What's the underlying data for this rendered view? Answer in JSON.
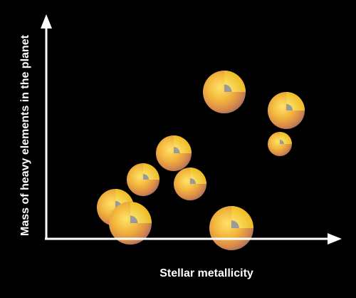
{
  "axes": {
    "x_label": "Stellar metallicity",
    "y_label": "Mass of heavy elements in the planet"
  }
}
